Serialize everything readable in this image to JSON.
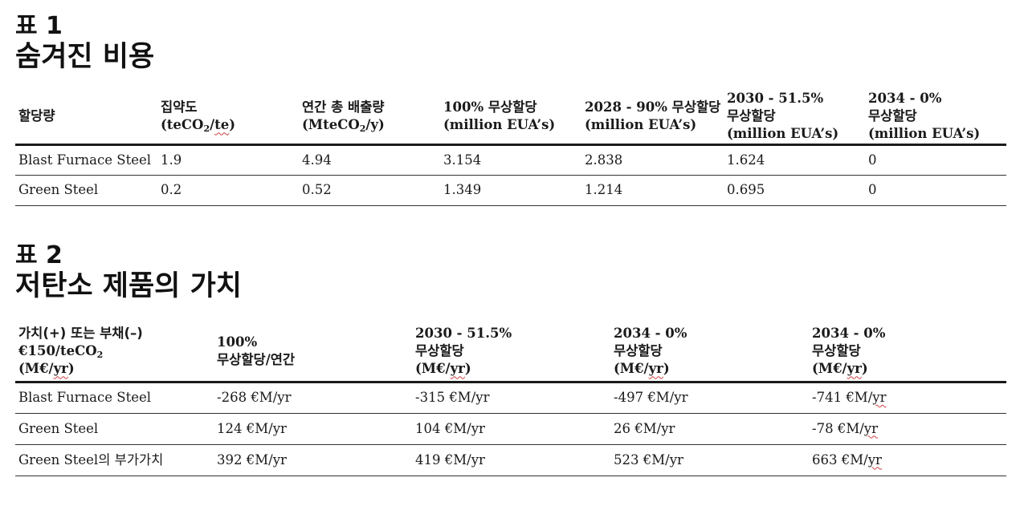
{
  "table1": {
    "label": "표 1",
    "title": "숨겨진 비용",
    "headers": {
      "col1": "할당량",
      "col2_l1": "집약도",
      "col2_l2_pre": "(teCO",
      "col2_l2_sub": "2",
      "col2_l2_mid": "/",
      "col2_l2_sq": "te",
      "col2_l2_post": ")",
      "col3_l1": "연간 총 배출량",
      "col3_l2_pre": "(MteCO",
      "col3_l2_sub": "2",
      "col3_l2_post": "/y)",
      "col4_l1": "100% 무상할당",
      "col4_l2": "(million EUA’s)",
      "col5_l1": "2028 - 90% 무상할당",
      "col5_l2": "(million EUA’s)",
      "col6_l1": "2030 - 51.5%",
      "col6_l2": "무상할당",
      "col6_l3": "(million EUA’s)",
      "col7_l1": "2034 - 0%",
      "col7_l2": "무상할당",
      "col7_l3": "(million EUA’s)"
    },
    "rows": [
      [
        "Blast Furnace Steel",
        "1.9",
        "4.94",
        "3.154",
        "2.838",
        "1.624",
        "0"
      ],
      [
        "Green Steel",
        "0.2",
        "0.52",
        "1.349",
        "1.214",
        "0.695",
        "0"
      ]
    ]
  },
  "table2": {
    "label": "표 2",
    "title": "저탄소 제품의 가치",
    "headers": {
      "col1_l1": "가치(+) 또는 부채(–)",
      "col1_l2_pre": "€150/teCO",
      "col1_l2_sub": "2",
      "col1_l3_pre": "(M€/",
      "col1_l3_sq": "yr",
      "col1_l3_post": ")",
      "col2_l1": "100%",
      "col2_l2": "무상할당/연간",
      "col3_l1": "2030 - 51.5%",
      "col3_l2": "무상할당",
      "col3_l3_pre": "(M€/",
      "col3_l3_sq": "yr",
      "col3_l3_post": ")",
      "col4_l1": "2034 - 0%",
      "col4_l2": "무상할당",
      "col4_l3_pre": "(M€/",
      "col4_l3_sq": "yr",
      "col4_l3_post": ")",
      "col5_l1": "2034 - 0%",
      "col5_l2": "무상할당",
      "col5_l3_pre": "(M€/",
      "col5_l3_sq": "yr",
      "col5_l3_post": ")"
    },
    "rows": [
      {
        "label": "Blast Furnace Steel",
        "v1": "-268 €M/yr",
        "v2": "-315 €M/yr",
        "v3": "-497 €M/yr",
        "v4_pre": "-741 €M/",
        "v4_sq": "yr"
      },
      {
        "label": "Green Steel",
        "v1": "124 €M/yr",
        "v2": "104 €M/yr",
        "v3": "26 €M/yr",
        "v4_pre": "-78 €M/",
        "v4_sq": "yr"
      },
      {
        "label_pre": "Green Steel",
        "label_ko": "의 부가가치",
        "v1": "392 €M/yr",
        "v2": "419 €M/yr",
        "v3": "523 €M/yr",
        "v4_pre": "663 €M/",
        "v4_sq": "yr"
      }
    ]
  }
}
